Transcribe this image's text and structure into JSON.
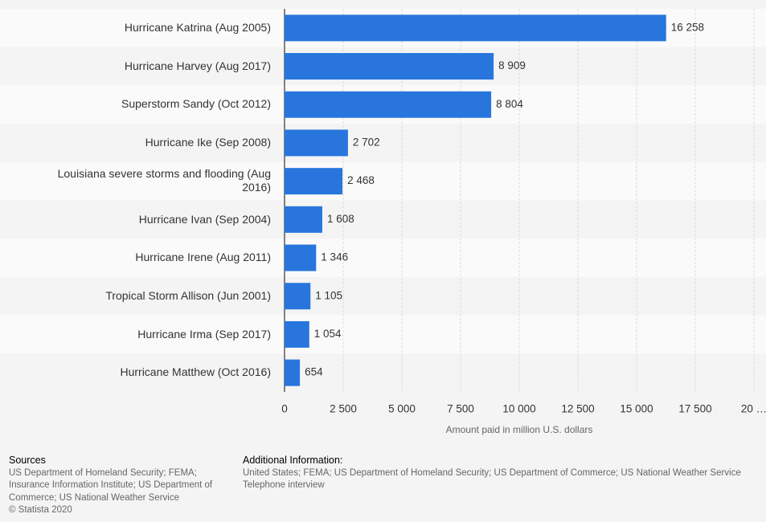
{
  "chart_data": {
    "type": "hbar",
    "categories": [
      "Hurricane Katrina (Aug 2005)",
      "Hurricane Harvey (Aug 2017)",
      "Superstorm Sandy (Oct 2012)",
      "Hurricane Ike (Sep 2008)",
      "Louisiana severe storms and flooding (Aug 2016)",
      "Hurricane Ivan (Sep 2004)",
      "Hurricane Irene (Aug 2011)",
      "Tropical Storm Allison (Jun 2001)",
      "Hurricane Irma (Sep 2017)",
      "Hurricane Matthew (Oct 2016)"
    ],
    "values": [
      16258,
      8909,
      8804,
      2702,
      2468,
      1608,
      1346,
      1105,
      1054,
      654
    ],
    "value_labels": [
      "16 258",
      "8 909",
      "8 804",
      "2 702",
      "2 468",
      "1 608",
      "1 346",
      "1 105",
      "1 054",
      "654"
    ],
    "color": "#2876dd",
    "xlabel": "Amount paid in million U.S. dollars",
    "xlim": [
      0,
      20000
    ],
    "xticks": [
      0,
      {
        "value": 2500,
        "label": "2 500"
      },
      {
        "value": 5000,
        "label": "5 000"
      },
      {
        "value": 7500,
        "label": "7 500"
      },
      {
        "value": 10000,
        "label": "10 000"
      },
      {
        "value": 12500,
        "label": "12 500"
      },
      {
        "value": 15000,
        "label": "15 000"
      },
      {
        "value": 17500,
        "label": "17 500"
      },
      {
        "value": 20000,
        "label": "20 …"
      }
    ],
    "grid": true
  },
  "footer": {
    "sources_title": "Sources",
    "sources": [
      "US Department of Homeland Security; FEMA;",
      "Insurance Information Institute; US Department of",
      "Commerce; US National Weather Service",
      "© Statista 2020"
    ],
    "additional_title": "Additional Information:",
    "additional": [
      "United States; FEMA; US Department of Homeland Security; US Department of Commerce; US National Weather Service",
      "Telephone interview"
    ]
  }
}
